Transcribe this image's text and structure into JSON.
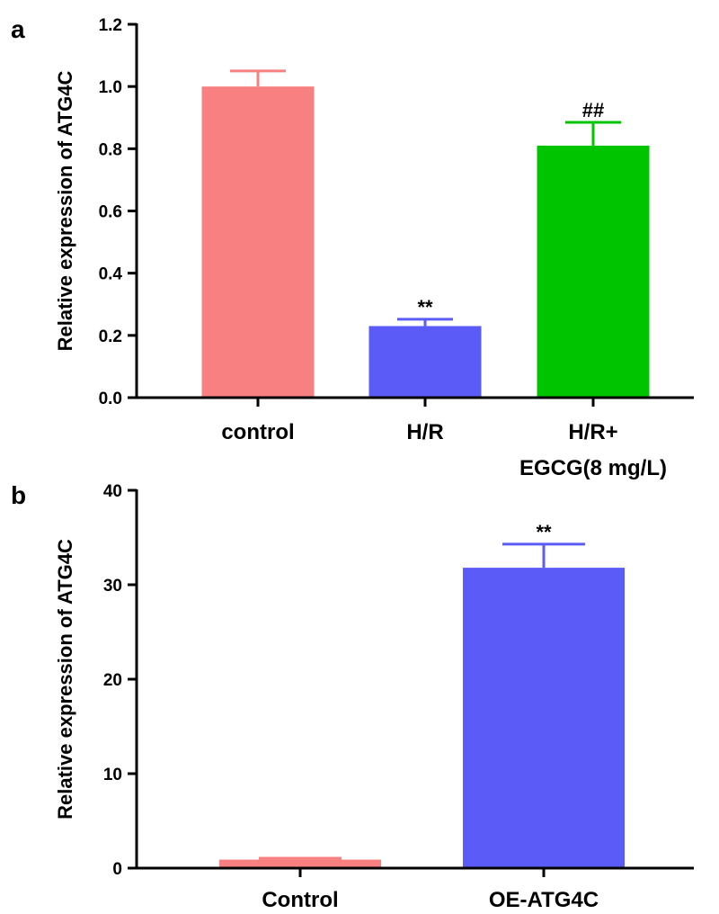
{
  "chart_data": [
    {
      "panel": "a",
      "type": "bar",
      "title": "",
      "xlabel": "",
      "ylabel": "Relative expression of ATG4C",
      "ylim": [
        0,
        1.2
      ],
      "yticks": [
        0.0,
        0.2,
        0.4,
        0.6,
        0.8,
        1.0,
        1.2
      ],
      "ytick_labels": [
        "0.0",
        "0.2",
        "0.4",
        "0.6",
        "0.8",
        "1.0",
        "1.2"
      ],
      "categories": [
        [
          "control"
        ],
        [
          "H/R"
        ],
        [
          "H/R+",
          "EGCG(8 mg/L)"
        ]
      ],
      "values": [
        1.0,
        0.23,
        0.81
      ],
      "errors": [
        0.05,
        0.022,
        0.075
      ],
      "colors": [
        "#f88080",
        "#5b5bf7",
        "#00c400"
      ],
      "annotations": [
        "",
        "**",
        "##"
      ]
    },
    {
      "panel": "b",
      "type": "bar",
      "title": "",
      "xlabel": "",
      "ylabel": "Relative expression of ATG4C",
      "ylim": [
        0,
        40
      ],
      "yticks": [
        0,
        10,
        20,
        30,
        40
      ],
      "ytick_labels": [
        "0",
        "10",
        "20",
        "30",
        "40"
      ],
      "categories": [
        [
          "Control"
        ],
        [
          "OE-ATG4C"
        ]
      ],
      "values": [
        0.9,
        31.8
      ],
      "errors": [
        0.15,
        2.5
      ],
      "colors": [
        "#f88080",
        "#5b5bf7"
      ],
      "annotations": [
        "",
        "**"
      ]
    }
  ]
}
